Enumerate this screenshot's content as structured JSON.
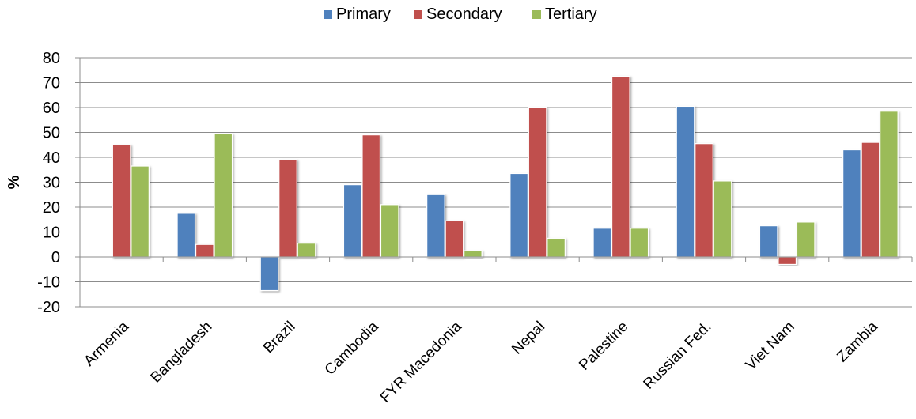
{
  "chart_data": {
    "type": "bar",
    "categories": [
      "Armenia",
      "Bangladesh",
      "Brazil",
      "Cambodia",
      "FYR Macedonia",
      "Nepal",
      "Palestine",
      "Russian Fed.",
      "Viet Nam",
      "Zambia"
    ],
    "series": [
      {
        "name": "Primary",
        "color": "#4F81BD",
        "values": [
          0,
          17.5,
          -13.5,
          29,
          25,
          33.5,
          11.5,
          60.5,
          12.5,
          43
        ]
      },
      {
        "name": "Secondary",
        "color": "#C0504D",
        "values": [
          45,
          5,
          39,
          49,
          14.5,
          60,
          72.5,
          45.5,
          -3,
          46
        ]
      },
      {
        "name": "Tertiary",
        "color": "#9BBB59",
        "values": [
          36.5,
          49.5,
          5.5,
          21,
          2.5,
          7.5,
          11.5,
          30.5,
          14,
          58.5
        ]
      }
    ],
    "ylabel": "%",
    "ylim": [
      -20,
      80
    ],
    "yticks": [
      80,
      70,
      60,
      50,
      40,
      30,
      20,
      10,
      0,
      -10,
      -20
    ],
    "grid": true,
    "legend_position": "top"
  }
}
